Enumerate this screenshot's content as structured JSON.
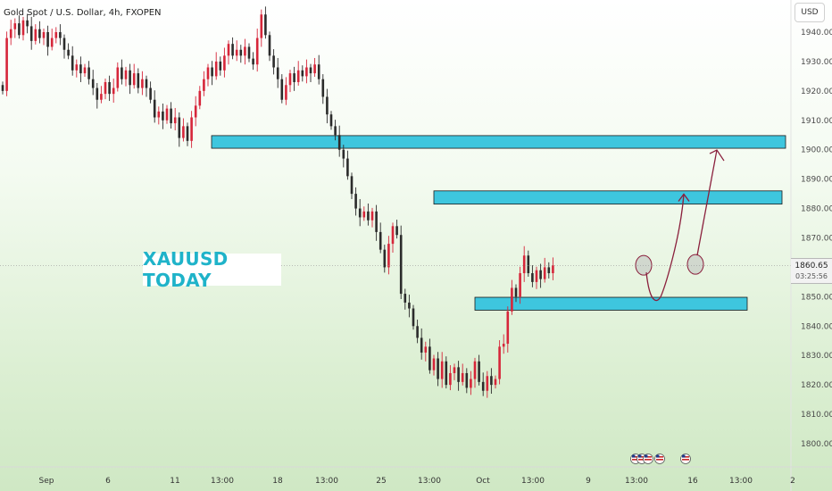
{
  "header": {
    "symbol_title": "Gold Spot / U.S. Dollar, 4h, FXOPEN"
  },
  "currency_button": "USD",
  "watermark": "XAUUSD TODAY",
  "current_price": {
    "value": "1860.65",
    "countdown": "03:25:56"
  },
  "colors": {
    "zone_fill": "#3ec6de",
    "zone_border": "#1a1a1a",
    "bull": "#26a69a",
    "candle_up": "#d6263a",
    "candle_down": "#2b2b2b",
    "projection_arrow": "#8a1f3c",
    "watermark_text": "#1fb3c9"
  },
  "chart_data": {
    "type": "candlestick",
    "ylim": [
      1796,
      1948
    ],
    "y_ticks": [
      "1940.00",
      "1930.00",
      "1920.00",
      "1910.00",
      "1900.00",
      "1890.00",
      "1880.00",
      "1870.00",
      "1860.00",
      "1850.00",
      "1840.00",
      "1830.00",
      "1820.00",
      "1810.00",
      "1800.00"
    ],
    "x_ticks": [
      "Sep",
      "6",
      "11",
      "13:00",
      "18",
      "13:00",
      "25",
      "13:00",
      "Oct",
      "13:00",
      "9",
      "13:00",
      "16",
      "13:00",
      "2"
    ],
    "series": [
      {
        "values": [
          1920,
          1938,
          1941,
          1943,
          1939,
          1944,
          1942,
          1937,
          1941,
          1938,
          1940,
          1935,
          1938,
          1940,
          1938,
          1934,
          1932,
          1927,
          1929,
          1926,
          1928,
          1924,
          1921,
          1917,
          1919,
          1923,
          1919,
          1921,
          1928,
          1924,
          1927,
          1922,
          1926,
          1921,
          1924,
          1921,
          1917,
          1911,
          1913,
          1910,
          1914,
          1909,
          1911,
          1904,
          1908,
          1903,
          1911,
          1915,
          1920,
          1924,
          1928,
          1925,
          1930,
          1927,
          1932,
          1936,
          1932,
          1934,
          1932,
          1935,
          1931,
          1929,
          1938,
          1946,
          1939,
          1932,
          1928,
          1924,
          1917,
          1922,
          1926,
          1923,
          1927,
          1925,
          1928,
          1926,
          1929,
          1924,
          1918,
          1912,
          1908,
          1905,
          1900,
          1897,
          1891,
          1885,
          1880,
          1877,
          1879,
          1876,
          1879,
          1872,
          1866,
          1860,
          1868,
          1874,
          1871,
          1851,
          1848,
          1846,
          1840,
          1836,
          1831,
          1833,
          1825,
          1829,
          1822,
          1828,
          1820,
          1824,
          1826,
          1821,
          1824,
          1819,
          1822,
          1828,
          1821,
          1818,
          1823,
          1820,
          1822,
          1833,
          1834,
          1845,
          1853,
          1850,
          1858,
          1864,
          1858,
          1855,
          1859,
          1856,
          1860,
          1858,
          1860.65
        ]
      }
    ],
    "zones": [
      {
        "low": 1900.5,
        "high": 1904.8,
        "start_index": 56,
        "end": "right-edge"
      },
      {
        "low": 1881.5,
        "high": 1886.0,
        "start_index": 92,
        "end": "right-edge"
      },
      {
        "low": 1845.4,
        "high": 1849.8,
        "start_index": 99,
        "end": "chart-end"
      }
    ],
    "projection": {
      "circles_price": [
        1860.7,
        1861.0
      ],
      "dip_price": 1848.8,
      "targets": [
        1885.5,
        1900.5
      ]
    }
  }
}
